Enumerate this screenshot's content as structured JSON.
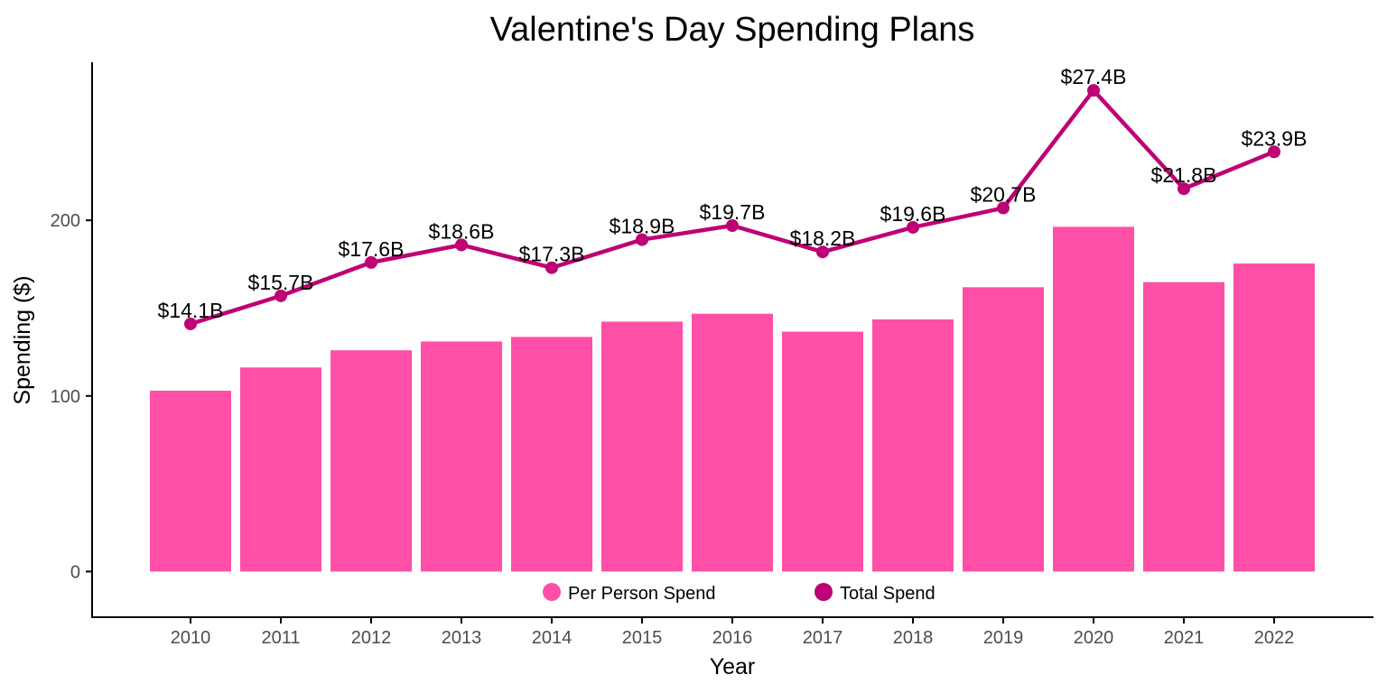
{
  "chart_data": {
    "type": "bar",
    "title": "Valentine's Day Spending Plans",
    "xlabel": "Year",
    "ylabel": "Spending ($)",
    "categories": [
      "2010",
      "2011",
      "2012",
      "2013",
      "2014",
      "2015",
      "2016",
      "2017",
      "2018",
      "2019",
      "2020",
      "2021",
      "2022"
    ],
    "ylim": [
      -26,
      290
    ],
    "yticks": [
      0,
      100,
      200
    ],
    "grid": false,
    "legend_position": "bottom",
    "series": [
      {
        "name": "Per Person Spend",
        "type": "bar",
        "color": "#FF4FA7",
        "values": [
          103.0,
          116.2,
          126.0,
          131.0,
          133.6,
          142.3,
          146.8,
          136.6,
          143.6,
          161.9,
          196.3,
          164.8,
          175.4
        ]
      },
      {
        "name": "Total Spend",
        "type": "line",
        "color": "#BE0174",
        "values": [
          141,
          157,
          176,
          186,
          173,
          189,
          197,
          182,
          196,
          207,
          274,
          218,
          239
        ],
        "labels": [
          "$14.1B",
          "$15.7B",
          "$17.6B",
          "$18.6B",
          "$17.3B",
          "$18.9B",
          "$19.7B",
          "$18.2B",
          "$19.6B",
          "$20.7B",
          "$27.4B",
          "$21.8B",
          "$23.9B"
        ]
      }
    ]
  }
}
